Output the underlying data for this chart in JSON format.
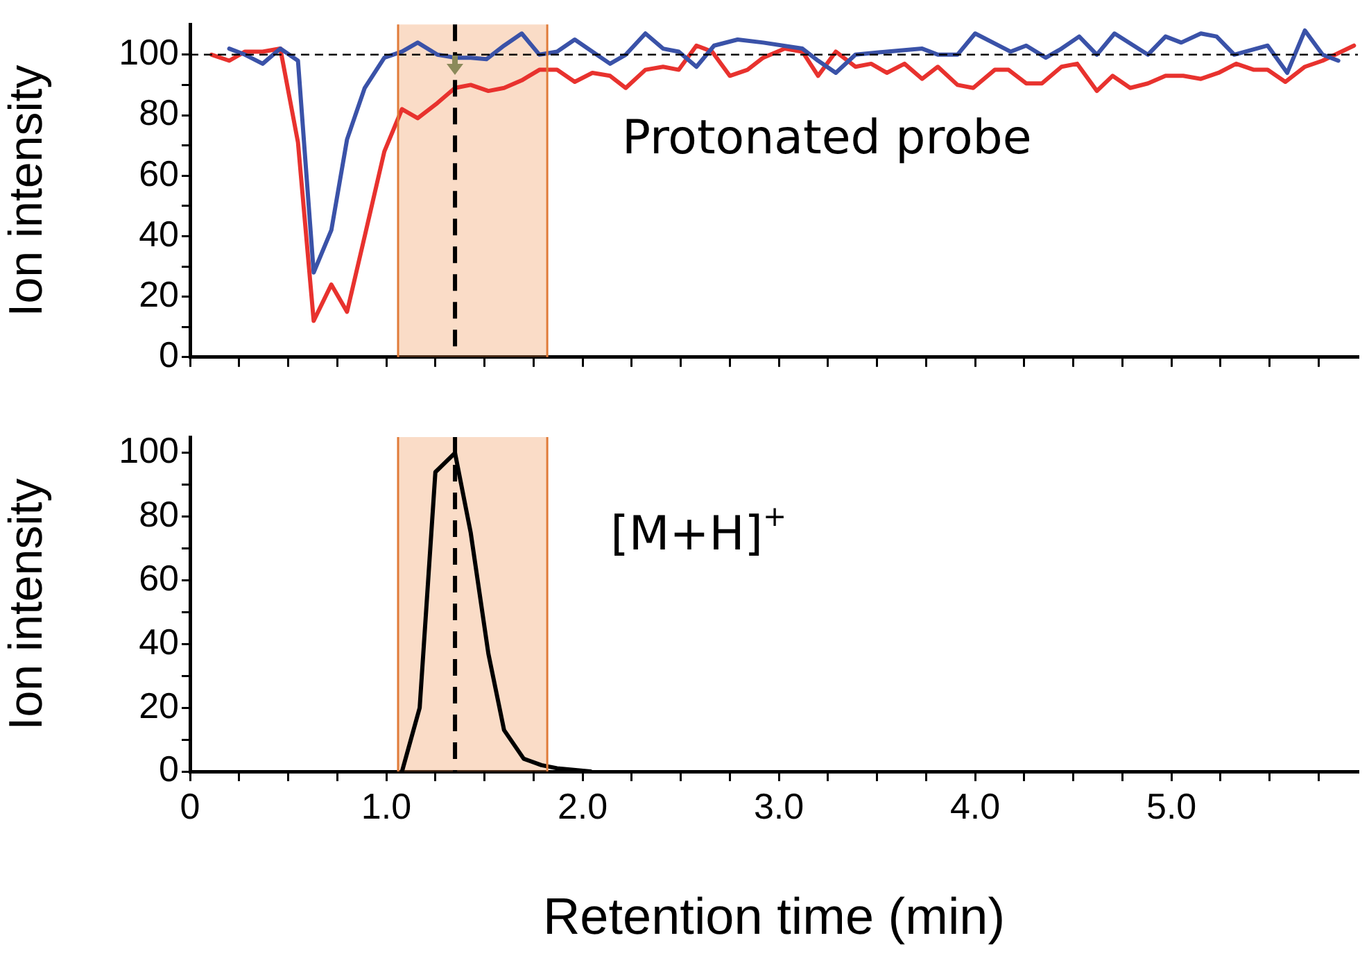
{
  "chart_data": [
    {
      "type": "line",
      "ylabel": "Ion intensity",
      "annotations": [
        "Protonated probe"
      ],
      "tick_labels": "y",
      "grid": false,
      "marker": "none",
      "line_style": "solid",
      "xlim": [
        0,
        5.95
      ],
      "ylim": [
        0,
        110
      ],
      "xticks": [
        {
          "value": 0,
          "label": null
        },
        {
          "value": 0.25,
          "label": null
        },
        {
          "value": 0.5,
          "label": null
        },
        {
          "value": 0.75,
          "label": null
        },
        {
          "value": 1,
          "label": null
        },
        {
          "value": 1.25,
          "label": null
        },
        {
          "value": 1.5,
          "label": null
        },
        {
          "value": 1.75,
          "label": null
        },
        {
          "value": 2,
          "label": null
        },
        {
          "value": 2.25,
          "label": null
        },
        {
          "value": 2.5,
          "label": null
        },
        {
          "value": 2.75,
          "label": null
        },
        {
          "value": 3,
          "label": null
        },
        {
          "value": 3.25,
          "label": null
        },
        {
          "value": 3.5,
          "label": null
        },
        {
          "value": 3.75,
          "label": null
        },
        {
          "value": 4,
          "label": null
        },
        {
          "value": 4.25,
          "label": null
        },
        {
          "value": 4.5,
          "label": null
        },
        {
          "value": 4.75,
          "label": null
        },
        {
          "value": 5,
          "label": null
        },
        {
          "value": 5.25,
          "label": null
        },
        {
          "value": 5.5,
          "label": null
        },
        {
          "value": 5.75,
          "label": null
        }
      ],
      "yticks": [
        0,
        {
          "value": 10,
          "label": null
        },
        20,
        {
          "value": 30,
          "label": null
        },
        40,
        {
          "value": 50,
          "label": null
        },
        60,
        {
          "value": 70,
          "label": null
        },
        80,
        {
          "value": 90,
          "label": null
        },
        100
      ],
      "bands": [
        {
          "axis": "x",
          "from": 1.06,
          "to": 1.82,
          "color": "#ee8a45"
        }
      ],
      "ref_lines": [
        {
          "axis": "y",
          "value": 100,
          "color": "#000000",
          "line_style": "dashed"
        },
        {
          "axis": "x",
          "value": 1.35,
          "color": "#000000",
          "line_style": "dashed"
        },
        {
          "axis": "x",
          "value": 1.06,
          "color": "#e07b39",
          "line_style": "solid"
        },
        {
          "axis": "x",
          "value": 1.82,
          "color": "#e07b39",
          "line_style": "solid"
        }
      ],
      "series": [
        {
          "color": "#3a52a8",
          "x": [
            0.2,
            0.28,
            0.37,
            0.46,
            0.55,
            0.63,
            0.72,
            0.8,
            0.89,
            0.99,
            1.08,
            1.16,
            1.26,
            1.35,
            1.43,
            1.51,
            1.6,
            1.69,
            1.78,
            1.87,
            1.96,
            2.05,
            2.14,
            2.22,
            2.32,
            2.41,
            2.49,
            2.58,
            2.67,
            2.79,
            2.92,
            3.12,
            3.2,
            3.29,
            3.39,
            3.55,
            3.73,
            3.81,
            3.91,
            4.0,
            4.18,
            4.26,
            4.36,
            4.44,
            4.53,
            4.62,
            4.71,
            4.88,
            4.97,
            5.05,
            5.15,
            5.23,
            5.32,
            5.49,
            5.59,
            5.68,
            5.77,
            5.85
          ],
          "values": [
            102,
            100,
            97,
            102,
            98,
            28,
            42,
            72,
            89,
            99,
            101,
            104,
            100,
            99,
            99,
            98.5,
            103,
            107,
            100,
            101,
            105,
            101,
            97,
            100,
            107,
            102,
            101,
            96,
            103,
            105,
            104,
            102,
            98,
            94,
            100,
            101,
            102,
            100,
            100,
            107,
            101,
            103,
            99,
            102,
            106,
            100,
            107,
            100,
            106,
            104,
            107,
            106,
            100,
            103,
            94,
            108,
            100,
            98
          ]
        },
        {
          "color": "#e8322e",
          "x": [
            0.11,
            0.2,
            0.28,
            0.37,
            0.46,
            0.55,
            0.63,
            0.72,
            0.8,
            0.89,
            0.99,
            1.08,
            1.16,
            1.26,
            1.35,
            1.43,
            1.52,
            1.6,
            1.69,
            1.78,
            1.87,
            1.96,
            2.05,
            2.14,
            2.22,
            2.32,
            2.41,
            2.49,
            2.58,
            2.66,
            2.75,
            2.84,
            2.92,
            3.03,
            3.12,
            3.2,
            3.29,
            3.39,
            3.47,
            3.55,
            3.64,
            3.73,
            3.81,
            3.91,
            3.99,
            4.1,
            4.17,
            4.26,
            4.34,
            4.44,
            4.52,
            4.62,
            4.7,
            4.79,
            4.88,
            4.97,
            5.06,
            5.15,
            5.24,
            5.33,
            5.42,
            5.49,
            5.58,
            5.68,
            5.77,
            5.93
          ],
          "values": [
            100,
            98,
            101,
            101,
            102,
            71,
            12,
            24,
            15,
            40,
            68,
            82,
            79,
            84,
            89,
            90,
            88,
            89,
            91.5,
            95,
            95,
            91,
            94,
            93,
            89,
            95,
            96,
            95,
            103,
            101,
            93,
            95,
            99,
            102,
            101,
            93,
            101,
            96,
            97,
            94,
            97,
            92,
            96,
            90,
            89,
            95,
            95,
            90.5,
            90.5,
            96,
            97,
            88,
            93,
            89,
            90.5,
            93,
            93,
            92,
            94,
            97,
            95,
            95,
            91,
            96,
            98,
            103
          ]
        }
      ]
    },
    {
      "type": "line",
      "ylabel": "Ion intensity",
      "xlabel": "Retention time (min)",
      "annotations": [
        "[M+H]$^{+}$"
      ],
      "grid": false,
      "marker": "none",
      "line_style": "solid",
      "xlim": [
        0,
        5.95
      ],
      "ylim": [
        0,
        105
      ],
      "xticks": [
        0,
        {
          "value": 0.25,
          "label": null
        },
        {
          "value": 0.5,
          "label": null
        },
        {
          "value": 0.75,
          "label": null
        },
        {
          "value": 1,
          "label": "1.0"
        },
        {
          "value": 1.25,
          "label": null
        },
        {
          "value": 1.5,
          "label": null
        },
        {
          "value": 1.75,
          "label": null
        },
        {
          "value": 2,
          "label": "2.0"
        },
        {
          "value": 2.25,
          "label": null
        },
        {
          "value": 2.5,
          "label": null
        },
        {
          "value": 2.75,
          "label": null
        },
        {
          "value": 3,
          "label": "3.0"
        },
        {
          "value": 3.25,
          "label": null
        },
        {
          "value": 3.5,
          "label": null
        },
        {
          "value": 3.75,
          "label": null
        },
        {
          "value": 4,
          "label": "4.0"
        },
        {
          "value": 4.25,
          "label": null
        },
        {
          "value": 4.5,
          "label": null
        },
        {
          "value": 4.75,
          "label": null
        },
        {
          "value": 5,
          "label": "5.0"
        },
        {
          "value": 5.25,
          "label": null
        },
        {
          "value": 5.5,
          "label": null
        },
        {
          "value": 5.75,
          "label": null
        }
      ],
      "yticks": [
        0,
        {
          "value": 10,
          "label": null
        },
        20,
        {
          "value": 30,
          "label": null
        },
        40,
        {
          "value": 50,
          "label": null
        },
        60,
        {
          "value": 70,
          "label": null
        },
        80,
        {
          "value": 90,
          "label": null
        },
        100
      ],
      "bands": [
        {
          "axis": "x",
          "from": 1.06,
          "to": 1.82,
          "color": "#ee8a45"
        }
      ],
      "ref_lines": [
        {
          "axis": "x",
          "value": 1.35,
          "color": "#000000",
          "line_style": "dashed"
        },
        {
          "axis": "x",
          "value": 1.06,
          "color": "#e07b39",
          "line_style": "solid"
        },
        {
          "axis": "x",
          "value": 1.82,
          "color": "#e07b39",
          "line_style": "solid"
        }
      ],
      "series": [
        {
          "color": "#000000",
          "x": [
            1.08,
            1.17,
            1.25,
            1.35,
            1.43,
            1.52,
            1.6,
            1.7,
            1.79,
            1.87,
            2.04
          ],
          "values": [
            0,
            20,
            94,
            100,
            75,
            37,
            13,
            4,
            2,
            1,
            0
          ]
        }
      ]
    }
  ]
}
